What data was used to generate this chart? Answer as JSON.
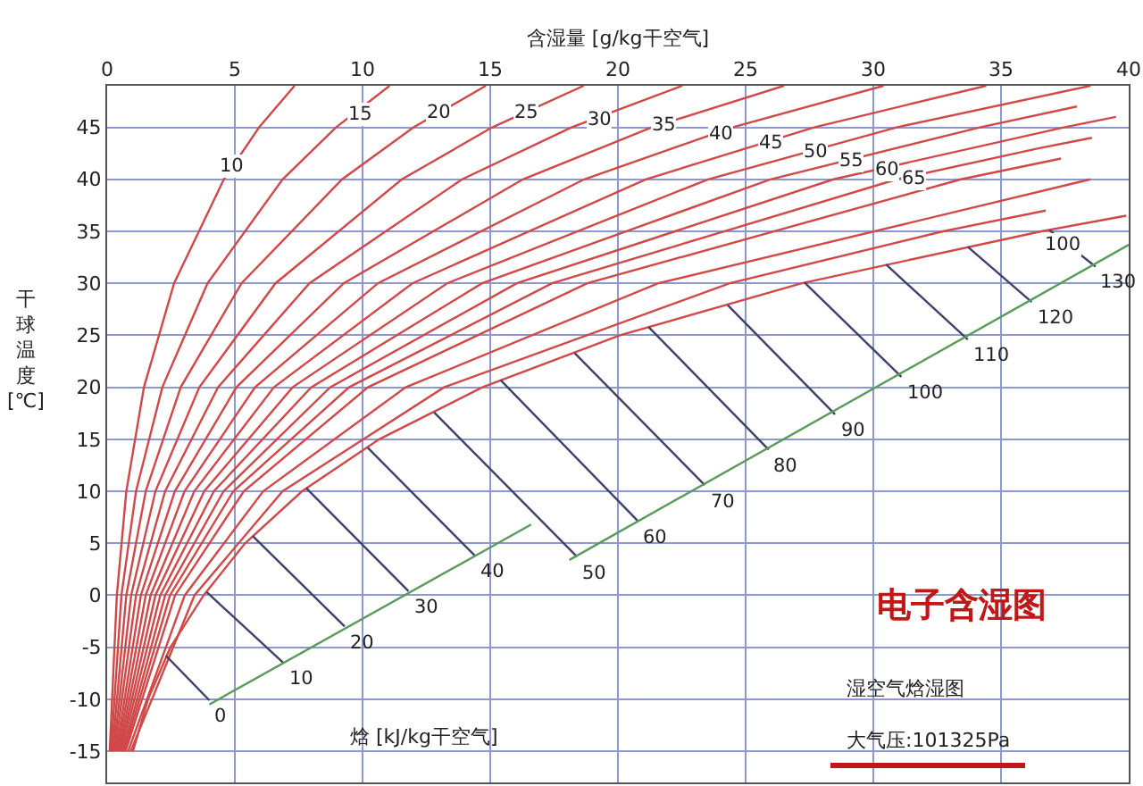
{
  "chart_data": {
    "type": "line",
    "xlabel": "含湿量 [g/kg干空气]",
    "ylabel": "干球温度 [℃]",
    "xlim": [
      0,
      40
    ],
    "xticks": [
      0,
      5,
      10,
      15,
      20,
      25,
      30,
      35,
      40
    ],
    "ylim": [
      -18,
      49
    ],
    "yticks": [
      -15,
      -10,
      -5,
      0,
      5,
      10,
      15,
      20,
      25,
      30,
      35,
      40,
      45
    ],
    "grid": true,
    "series": [
      {
        "color": "#d04848",
        "x": [
          0.1,
          0.38,
          0.75,
          1.44,
          2.62,
          4.57,
          5.95,
          7.34
        ],
        "values": [
          -15,
          0,
          10,
          20,
          30,
          40,
          45,
          49
        ]
      },
      {
        "color": "#d04848",
        "x": [
          0.15,
          0.56,
          1.13,
          2.16,
          3.93,
          6.87,
          8.96,
          11.06
        ],
        "values": [
          -15,
          0,
          10,
          20,
          30,
          40,
          45,
          49
        ]
      },
      {
        "color": "#d04848",
        "x": [
          0.2,
          0.75,
          1.51,
          2.88,
          5.26,
          9.2,
          12.0,
          14.83
        ],
        "values": [
          -15,
          0,
          10,
          20,
          30,
          40,
          45,
          49
        ]
      },
      {
        "color": "#d04848",
        "x": [
          0.25,
          0.94,
          1.89,
          3.61,
          6.59,
          11.54,
          15.08,
          18.66
        ],
        "values": [
          -15,
          0,
          10,
          20,
          30,
          40,
          45,
          49
        ]
      },
      {
        "color": "#d04848",
        "x": [
          0.3,
          1.13,
          2.27,
          4.34,
          7.92,
          13.9,
          18.18,
          22.52
        ],
        "values": [
          -15,
          0,
          10,
          20,
          30,
          40,
          45,
          49
        ]
      },
      {
        "color": "#d04848",
        "x": [
          0.36,
          1.32,
          2.65,
          5.06,
          9.26,
          16.28,
          21.32,
          26.5
        ],
        "values": [
          -15,
          0,
          10,
          20,
          30,
          40,
          45,
          49
        ]
      },
      {
        "color": "#d04848",
        "x": [
          0.41,
          1.51,
          3.03,
          5.79,
          10.6,
          18.68,
          24.48,
          30.4
        ],
        "values": [
          -15,
          0,
          10,
          20,
          30,
          40,
          45,
          49
        ]
      },
      {
        "color": "#d04848",
        "x": [
          0.46,
          1.7,
          3.41,
          6.53,
          11.95,
          21.09,
          27.68,
          34.42
        ],
        "values": [
          -15,
          0,
          10,
          20,
          30,
          40,
          45,
          49
        ]
      },
      {
        "color": "#d04848",
        "x": [
          0.51,
          1.89,
          3.8,
          7.26,
          13.31,
          23.53,
          30.91,
          38.5
        ],
        "values": [
          -15,
          0,
          10,
          20,
          30,
          40,
          45,
          49
        ]
      },
      {
        "color": "#d04848",
        "x": [
          0.56,
          2.08,
          4.18,
          7.99,
          14.68,
          25.97,
          34.17,
          37.97
        ],
        "values": [
          -15,
          0,
          10,
          20,
          30,
          40,
          45,
          47
        ]
      },
      {
        "color": "#d04848",
        "x": [
          0.62,
          2.27,
          4.56,
          8.73,
          16.04,
          28.44,
          37.46,
          39.5
        ],
        "values": [
          -15,
          0,
          10,
          20,
          30,
          40,
          45,
          46
        ]
      },
      {
        "color": "#d04848",
        "x": [
          0.67,
          2.46,
          4.94,
          9.47,
          17.42,
          30.92,
          36.5,
          38.56
        ],
        "values": [
          -15,
          0,
          10,
          20,
          30,
          40,
          43,
          44
        ]
      },
      {
        "color": "#d04848",
        "x": [
          0.72,
          2.66,
          5.35,
          10.21,
          18.8,
          33.43,
          37.35
        ],
        "values": [
          -15,
          0,
          10,
          20,
          30,
          40,
          42
        ]
      },
      {
        "color": "#d04848",
        "x": [
          0.82,
          3.04,
          6.11,
          11.69,
          21.58,
          38.5
        ],
        "values": [
          -15,
          0,
          10,
          20,
          30,
          40
        ]
      },
      {
        "color": "#d04848",
        "x": [
          0.92,
          3.42,
          6.87,
          13.19,
          24.38,
          32.73,
          36.75
        ],
        "values": [
          -15,
          0,
          10,
          20,
          30,
          35,
          37
        ]
      },
      {
        "color": "#d04848",
        "x": [
          1.01,
          1.6,
          2.48,
          3.78,
          5.4,
          7.63,
          10.65,
          14.69,
          20.08,
          27.2,
          36.58,
          39.9
        ],
        "values": [
          -15,
          -10,
          -5,
          0,
          5,
          10,
          15,
          20,
          25,
          30,
          35,
          36.5
        ]
      },
      {
        "name": "0",
        "color": "#404068",
        "x": [
          2.3,
          4.0
        ],
        "values": [
          -5.8,
          -10.1
        ]
      },
      {
        "name": "10",
        "color": "#404068",
        "x": [
          3.9,
          6.9
        ],
        "values": [
          0.3,
          -6.5
        ]
      },
      {
        "name": "20",
        "color": "#404068",
        "x": [
          5.7,
          9.3
        ],
        "values": [
          5.7,
          -3.0
        ]
      },
      {
        "name": "30",
        "color": "#404068",
        "x": [
          7.8,
          11.8
        ],
        "values": [
          10.3,
          0.4
        ]
      },
      {
        "name": "40",
        "color": "#404068",
        "x": [
          10.2,
          14.4
        ],
        "values": [
          14.2,
          3.8
        ]
      },
      {
        "name": "50",
        "color": "#404068",
        "x": [
          12.8,
          18.4
        ],
        "values": [
          17.6,
          3.7
        ]
      },
      {
        "name": "60",
        "color": "#404068",
        "x": [
          15.4,
          20.8
        ],
        "values": [
          20.7,
          7.1
        ]
      },
      {
        "name": "70",
        "color": "#404068",
        "x": [
          18.3,
          23.4
        ],
        "values": [
          23.3,
          10.6
        ]
      },
      {
        "name": "80",
        "color": "#404068",
        "x": [
          21.2,
          25.9
        ],
        "values": [
          25.8,
          14.0
        ]
      },
      {
        "name": "90",
        "color": "#404068",
        "x": [
          24.3,
          28.5
        ],
        "values": [
          27.9,
          17.4
        ]
      },
      {
        "name": "100",
        "color": "#404068",
        "x": [
          27.3,
          31.1
        ],
        "values": [
          30.1,
          21.0
        ]
      },
      {
        "name": "110",
        "color": "#404068",
        "x": [
          30.5,
          33.7
        ],
        "values": [
          31.8,
          24.6
        ]
      },
      {
        "name": "120",
        "color": "#404068",
        "x": [
          33.7,
          36.2
        ],
        "values": [
          33.5,
          28.2
        ]
      },
      {
        "name": "130",
        "color": "#404068",
        "x": [
          36.9,
          38.7
        ],
        "values": [
          35.1,
          31.6
        ]
      },
      {
        "color": "#5a9a5a",
        "x": [
          4.0,
          16.6,
          17.3,
          18.1,
          40
        ],
        "values": [
          -10.5,
          6.8,
          null,
          3.4,
          33.7
        ]
      }
    ],
    "annotations": [
      {
        "text": "10",
        "x": 4.83,
        "y": 41.2
      },
      {
        "text": "15",
        "x": 9.9,
        "y": 46.2
      },
      {
        "text": "20",
        "x": 12.95,
        "y": 46.4
      },
      {
        "text": "25",
        "x": 16.4,
        "y": 46.4
      },
      {
        "text": "30",
        "x": 19.3,
        "y": 45.7
      },
      {
        "text": "35",
        "x": 21.8,
        "y": 45.2
      },
      {
        "text": "40",
        "x": 24.0,
        "y": 44.4
      },
      {
        "text": "45",
        "x": 26.0,
        "y": 43.5
      },
      {
        "text": "50",
        "x": 27.7,
        "y": 42.7
      },
      {
        "text": "55",
        "x": 29.1,
        "y": 41.8
      },
      {
        "text": "60",
        "x": 30.5,
        "y": 41.0
      },
      {
        "text": "65",
        "x": 31.6,
        "y": 40.0
      },
      {
        "text": "100",
        "x": 37.4,
        "y": 33.7
      },
      "焓 [kJ/kg干空气]",
      "电子含湿图",
      "湿空气焓湿图",
      "大气压:101325Pa"
    ]
  }
}
